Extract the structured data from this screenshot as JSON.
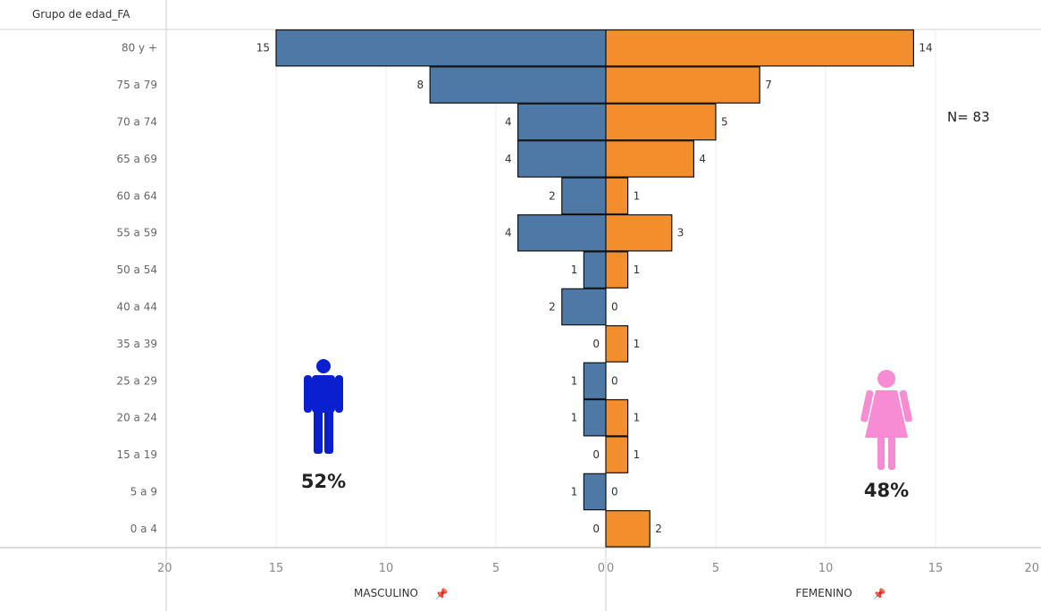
{
  "chart_data": {
    "type": "bar",
    "orientation": "horizontal-population-pyramid",
    "row_header": "Grupo de edad_FA",
    "categories": [
      "80 y +",
      "75 a 79",
      "70 a 74",
      "65 a 69",
      "60 a 64",
      "55 a 59",
      "50 a 54",
      "40 a 44",
      "35 a 39",
      "25 a 29",
      "20 a 24",
      "15 a 19",
      "5 a 9",
      "0 a 4"
    ],
    "series": [
      {
        "name": "MASCULINO",
        "color": "#4e79a7",
        "values": [
          15,
          8,
          4,
          4,
          2,
          4,
          1,
          2,
          0,
          1,
          1,
          0,
          1,
          0
        ]
      },
      {
        "name": "FEMENINO",
        "color": "#f28e2b",
        "values": [
          14,
          7,
          5,
          4,
          1,
          3,
          1,
          0,
          1,
          0,
          1,
          1,
          0,
          2
        ]
      }
    ],
    "xlim": [
      0,
      20
    ],
    "ticks": [
      "20",
      "15",
      "10",
      "5",
      "0",
      "0",
      "5",
      "10",
      "15",
      "20"
    ],
    "annotations": {
      "total": "N= 83",
      "male_pct": "52%",
      "female_pct": "48%"
    },
    "grid": true
  },
  "icons": {
    "male": {
      "name": "male-person-icon",
      "color": "#0a1fd0"
    },
    "female": {
      "name": "female-person-icon",
      "color": "#f78bd4"
    }
  }
}
